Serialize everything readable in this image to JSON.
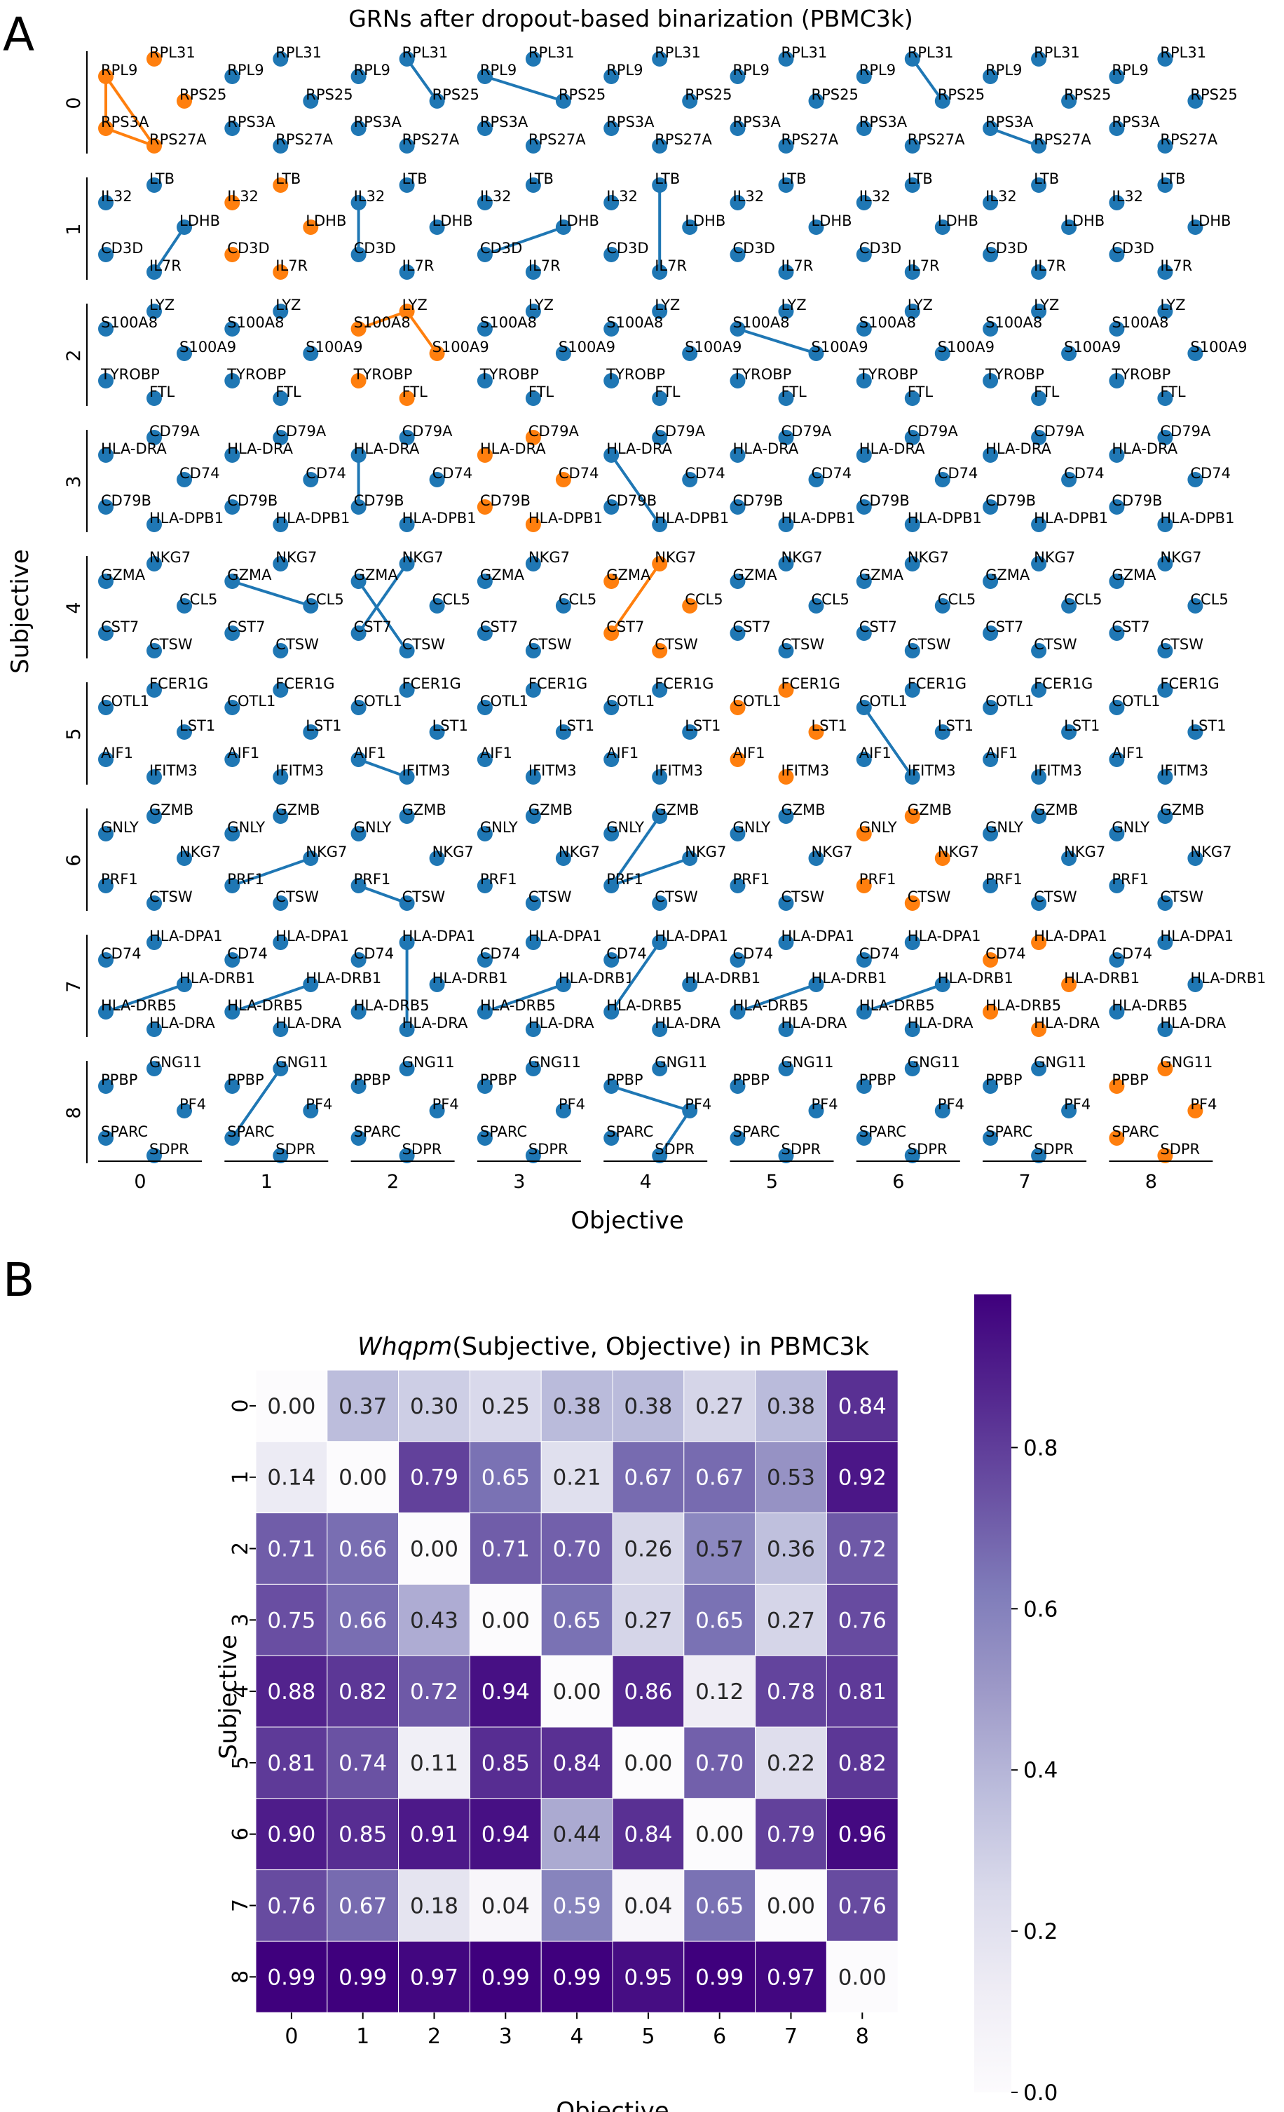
{
  "panel_a": {
    "letter": "A",
    "chart_data": {
      "type": "network-grid",
      "title": "GRNs after dropout-based binarization (PBMC3k)",
      "xlabel": "Objective",
      "ylabel": "Subjective",
      "col_ticks": [
        "0",
        "1",
        "2",
        "3",
        "4",
        "5",
        "6",
        "7",
        "8"
      ],
      "row_ticks": [
        "0",
        "1",
        "2",
        "3",
        "4",
        "5",
        "6",
        "7",
        "8"
      ],
      "node_colors": {
        "default": "#1f77b4",
        "highlight": "#ff7f0e"
      },
      "rows": [
        {
          "genes": [
            "RPL31",
            "RPL9",
            "RPS25",
            "RPS3A",
            "RPS27A"
          ],
          "edges": [
            [],
            [],
            [
              [
                0,
                2
              ]
            ],
            [
              [
                1,
                2
              ]
            ],
            [],
            [],
            [
              [
                0,
                2
              ]
            ],
            [
              [
                3,
                4
              ]
            ],
            []
          ],
          "highlight_col": 0,
          "highlight_edges": [
            [
              1,
              3
            ],
            [
              3,
              4
            ],
            [
              1,
              4
            ]
          ]
        },
        {
          "genes": [
            "LTB",
            "IL32",
            "LDHB",
            "CD3D",
            "IL7R"
          ],
          "edges": [
            [
              [
                2,
                4
              ]
            ],
            [],
            [
              [
                1,
                3
              ]
            ],
            [
              [
                2,
                3
              ]
            ],
            [
              [
                0,
                4
              ]
            ],
            [],
            [],
            [],
            []
          ],
          "highlight_col": 1,
          "highlight_edges": []
        },
        {
          "genes": [
            "LYZ",
            "S100A8",
            "S100A9",
            "TYROBP",
            "FTL"
          ],
          "edges": [
            [],
            [],
            [],
            [],
            [],
            [
              [
                1,
                2
              ]
            ],
            [],
            [],
            []
          ],
          "highlight_col": 2,
          "highlight_edges": [
            [
              0,
              1
            ],
            [
              0,
              2
            ]
          ]
        },
        {
          "genes": [
            "CD79A",
            "HLA-DRA",
            "CD74",
            "CD79B",
            "HLA-DPB1"
          ],
          "edges": [
            [],
            [],
            [
              [
                1,
                3
              ]
            ],
            [],
            [
              [
                1,
                4
              ]
            ],
            [],
            [],
            [],
            []
          ],
          "highlight_col": 3,
          "highlight_edges": []
        },
        {
          "genes": [
            "NKG7",
            "GZMA",
            "CCL5",
            "CST7",
            "CTSW"
          ],
          "edges": [
            [],
            [
              [
                1,
                2
              ]
            ],
            [
              [
                0,
                3
              ],
              [
                1,
                4
              ]
            ],
            [],
            [],
            [],
            [],
            [],
            []
          ],
          "highlight_col": 4,
          "highlight_edges": [
            [
              0,
              3
            ]
          ]
        },
        {
          "genes": [
            "FCER1G",
            "COTL1",
            "LST1",
            "AIF1",
            "IFITM3"
          ],
          "edges": [
            [],
            [],
            [
              [
                3,
                4
              ]
            ],
            [],
            [],
            [],
            [
              [
                1,
                4
              ]
            ],
            [],
            []
          ],
          "highlight_col": 5,
          "highlight_edges": []
        },
        {
          "genes": [
            "GZMB",
            "GNLY",
            "NKG7",
            "PRF1",
            "CTSW"
          ],
          "edges": [
            [],
            [
              [
                3,
                2
              ]
            ],
            [
              [
                3,
                4
              ]
            ],
            [],
            [
              [
                3,
                0
              ],
              [
                3,
                2
              ]
            ],
            [],
            [],
            [],
            []
          ],
          "highlight_col": 6,
          "highlight_edges": []
        },
        {
          "genes": [
            "HLA-DPA1",
            "CD74",
            "HLA-DRB1",
            "HLA-DRB5",
            "HLA-DRA"
          ],
          "edges": [
            [
              [
                3,
                2
              ]
            ],
            [
              [
                3,
                2
              ]
            ],
            [
              [
                0,
                4
              ]
            ],
            [
              [
                3,
                2
              ]
            ],
            [
              [
                3,
                0
              ]
            ],
            [
              [
                3,
                2
              ]
            ],
            [
              [
                3,
                2
              ]
            ],
            [],
            []
          ],
          "highlight_col": 7,
          "highlight_edges": []
        },
        {
          "genes": [
            "GNG11",
            "PPBP",
            "PF4",
            "SPARC",
            "SDPR"
          ],
          "edges": [
            [],
            [
              [
                0,
                3
              ]
            ],
            [],
            [],
            [
              [
                1,
                2
              ],
              [
                2,
                4
              ]
            ],
            [],
            [],
            [],
            []
          ],
          "highlight_col": 8,
          "highlight_edges": []
        }
      ]
    }
  },
  "panel_b": {
    "letter": "B",
    "chart_data": {
      "type": "heatmap",
      "title_italic": "Whqpm",
      "title_rest": "(Subjective, Objective) in PBMC3k",
      "xlabel": "Objective",
      "ylabel": "Subjective",
      "x_ticks": [
        "0",
        "1",
        "2",
        "3",
        "4",
        "5",
        "6",
        "7",
        "8"
      ],
      "y_ticks": [
        "0",
        "1",
        "2",
        "3",
        "4",
        "5",
        "6",
        "7",
        "8"
      ],
      "vmin": 0.0,
      "vmax": 0.99,
      "colorbar_ticks": [
        "0.0",
        "0.2",
        "0.4",
        "0.6",
        "0.8"
      ],
      "colormap": "Purples",
      "matrix": [
        [
          0.0,
          0.37,
          0.3,
          0.25,
          0.38,
          0.38,
          0.27,
          0.38,
          0.84
        ],
        [
          0.14,
          0.0,
          0.79,
          0.65,
          0.21,
          0.67,
          0.67,
          0.53,
          0.92
        ],
        [
          0.71,
          0.66,
          0.0,
          0.71,
          0.7,
          0.26,
          0.57,
          0.36,
          0.72
        ],
        [
          0.75,
          0.66,
          0.43,
          0.0,
          0.65,
          0.27,
          0.65,
          0.27,
          0.76
        ],
        [
          0.88,
          0.82,
          0.72,
          0.94,
          0.0,
          0.86,
          0.12,
          0.78,
          0.81
        ],
        [
          0.81,
          0.74,
          0.11,
          0.85,
          0.84,
          0.0,
          0.7,
          0.22,
          0.82
        ],
        [
          0.9,
          0.85,
          0.91,
          0.94,
          0.44,
          0.84,
          0.0,
          0.79,
          0.96
        ],
        [
          0.76,
          0.67,
          0.18,
          0.04,
          0.59,
          0.04,
          0.65,
          0.0,
          0.76
        ],
        [
          0.99,
          0.99,
          0.97,
          0.99,
          0.99,
          0.95,
          0.99,
          0.97,
          0.0
        ]
      ]
    }
  }
}
